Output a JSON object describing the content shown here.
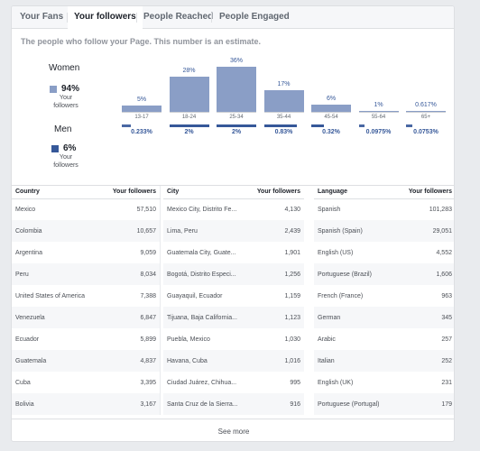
{
  "tabs": [
    {
      "label": "Your Fans"
    },
    {
      "label": "Your followers"
    },
    {
      "label": "People Reached"
    },
    {
      "label": "People Engaged"
    }
  ],
  "description": "The people who follow your Page. This number is an estimate.",
  "legend": {
    "women": {
      "title": "Women",
      "pct": "94%",
      "sub": "Your followers",
      "color": "#8a9ec6"
    },
    "men": {
      "title": "Men",
      "pct": "6%",
      "sub": "Your followers",
      "color": "#365899"
    }
  },
  "chart_data": {
    "type": "bar",
    "categories": [
      "13-17",
      "18-24",
      "25-34",
      "35-44",
      "45-54",
      "55-64",
      "65+"
    ],
    "series": [
      {
        "name": "Women",
        "values": [
          5,
          28,
          36,
          17,
          6,
          1,
          0.617
        ],
        "labels": [
          "5%",
          "28%",
          "36%",
          "17%",
          "6%",
          "1%",
          "0.617%"
        ],
        "color": "#8a9ec6"
      },
      {
        "name": "Men",
        "values": [
          0.233,
          2,
          2,
          0.83,
          0.32,
          0.0975,
          0.0753
        ],
        "labels": [
          "0.233%",
          "2%",
          "2%",
          "0.83%",
          "0.32%",
          "0.0975%",
          "0.0753%"
        ],
        "color": "#365899"
      }
    ]
  },
  "tables": [
    {
      "headers": [
        "Country",
        "Your followers"
      ],
      "rows": [
        [
          "Mexico",
          "57,510"
        ],
        [
          "Colombia",
          "10,657"
        ],
        [
          "Argentina",
          "9,059"
        ],
        [
          "Peru",
          "8,034"
        ],
        [
          "United States of America",
          "7,388"
        ],
        [
          "Venezuela",
          "6,847"
        ],
        [
          "Ecuador",
          "5,899"
        ],
        [
          "Guatemala",
          "4,837"
        ],
        [
          "Cuba",
          "3,395"
        ],
        [
          "Bolivia",
          "3,167"
        ]
      ]
    },
    {
      "headers": [
        "City",
        "Your followers"
      ],
      "rows": [
        [
          "Mexico City, Distrito Fe...",
          "4,130"
        ],
        [
          "Lima, Peru",
          "2,439"
        ],
        [
          "Guatemala City, Guate...",
          "1,901"
        ],
        [
          "Bogotá, Distrito Especi...",
          "1,256"
        ],
        [
          "Guayaquil, Ecuador",
          "1,159"
        ],
        [
          "Tijuana, Baja California...",
          "1,123"
        ],
        [
          "Puebla, Mexico",
          "1,030"
        ],
        [
          "Havana, Cuba",
          "1,016"
        ],
        [
          "Ciudad Juárez, Chihua...",
          "995"
        ],
        [
          "Santa Cruz de la Sierra...",
          "916"
        ]
      ]
    },
    {
      "headers": [
        "Language",
        "Your followers"
      ],
      "rows": [
        [
          "Spanish",
          "101,283"
        ],
        [
          "Spanish (Spain)",
          "29,051"
        ],
        [
          "English (US)",
          "4,552"
        ],
        [
          "Portuguese (Brazil)",
          "1,606"
        ],
        [
          "French (France)",
          "963"
        ],
        [
          "German",
          "345"
        ],
        [
          "Arabic",
          "257"
        ],
        [
          "Italian",
          "252"
        ],
        [
          "English (UK)",
          "231"
        ],
        [
          "Portuguese (Portugal)",
          "179"
        ]
      ]
    }
  ],
  "see_more": "See more"
}
